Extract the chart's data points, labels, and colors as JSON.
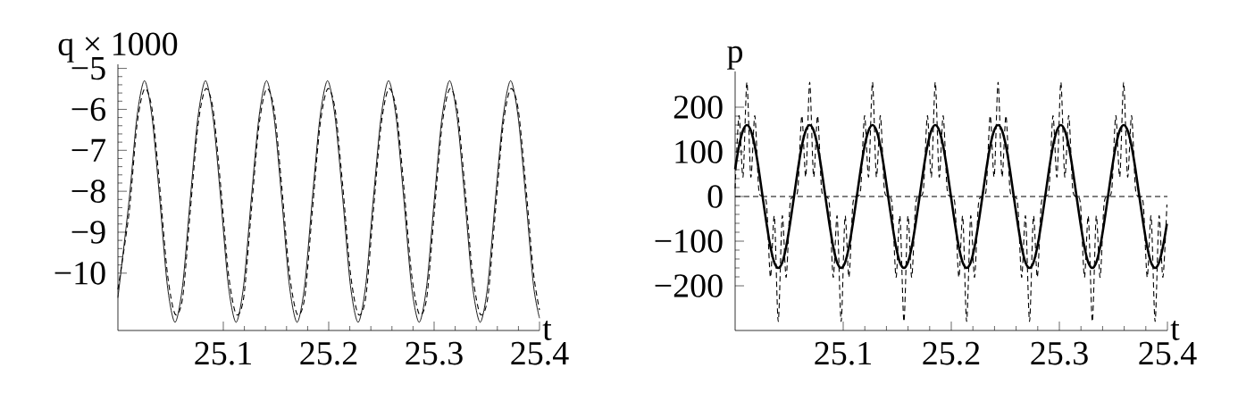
{
  "chart_data": [
    {
      "type": "line",
      "ylabel": "q × 1000",
      "xlabel": "t",
      "xlim": [
        25.0,
        25.4
      ],
      "ylim": [
        -11.4,
        -4.9
      ],
      "xticks": [
        25.1,
        25.2,
        25.3,
        25.4
      ],
      "yticks": [
        {
          "value": -5,
          "label": "−5"
        },
        {
          "value": -6,
          "label": "−6"
        },
        {
          "value": -7,
          "label": "−7"
        },
        {
          "value": -8,
          "label": "−8"
        },
        {
          "value": -9,
          "label": "−9"
        },
        {
          "value": -10,
          "label": "−10"
        }
      ],
      "x": [
        25.0,
        25.0107,
        25.018,
        25.0252,
        25.0324,
        25.0397,
        25.0469,
        25.0542,
        25.0614,
        25.0686,
        25.0759,
        25.0831,
        25.0903,
        25.0976,
        25.1048,
        25.1121,
        25.1193,
        25.1265,
        25.1338,
        25.141,
        25.1482,
        25.1555,
        25.1627,
        25.17,
        25.1772,
        25.1844,
        25.1917,
        25.1989,
        25.2061,
        25.2134,
        25.2206,
        25.2279,
        25.2351,
        25.2423,
        25.2496,
        25.2568,
        25.264,
        25.2713,
        25.2785,
        25.2858,
        25.293,
        25.3002,
        25.3075,
        25.3147,
        25.3219,
        25.3292,
        25.3364,
        25.3437,
        25.3509,
        25.3581,
        25.3654,
        25.3726,
        25.3798,
        25.3871,
        25.3943,
        25.4
      ],
      "series": [
        {
          "color": "#000000",
          "line_style": "solid",
          "values": [
            -10.6,
            -8.2,
            -6.2,
            -5.3,
            -6.2,
            -8.2,
            -10.3,
            -11.2,
            -10.3,
            -8.2,
            -6.2,
            -5.3,
            -6.2,
            -8.2,
            -10.3,
            -11.2,
            -10.3,
            -8.2,
            -6.2,
            -5.3,
            -6.2,
            -8.2,
            -10.3,
            -11.2,
            -10.3,
            -8.2,
            -6.2,
            -5.3,
            -6.2,
            -8.2,
            -10.3,
            -11.2,
            -10.3,
            -8.2,
            -6.2,
            -5.3,
            -6.2,
            -8.2,
            -10.3,
            -11.2,
            -10.3,
            -8.2,
            -6.2,
            -5.3,
            -6.2,
            -8.2,
            -10.3,
            -11.2,
            -10.3,
            -8.2,
            -6.2,
            -5.3,
            -6.2,
            -8.2,
            -10.3,
            -11.1
          ]
        },
        {
          "color": "#000000",
          "line_style": "dashed",
          "values": [
            -10.4,
            -8.5,
            -6.4,
            -5.5,
            -6.0,
            -7.9,
            -10.0,
            -11.0,
            -10.6,
            -8.5,
            -6.4,
            -5.5,
            -6.0,
            -7.9,
            -10.0,
            -11.0,
            -10.6,
            -8.5,
            -6.4,
            -5.5,
            -6.0,
            -7.9,
            -10.0,
            -11.0,
            -10.6,
            -8.5,
            -6.4,
            -5.5,
            -6.0,
            -7.9,
            -10.0,
            -11.0,
            -10.6,
            -8.5,
            -6.4,
            -5.5,
            -6.0,
            -7.9,
            -10.0,
            -11.0,
            -10.6,
            -8.5,
            -6.4,
            -5.5,
            -6.0,
            -7.9,
            -10.0,
            -11.0,
            -10.6,
            -8.5,
            -6.4,
            -5.5,
            -6.0,
            -7.9,
            -10.0,
            -10.9
          ]
        }
      ]
    },
    {
      "type": "line",
      "ylabel": "p",
      "xlabel": "t",
      "xlim": [
        25.0,
        25.4
      ],
      "ylim": [
        -300,
        280
      ],
      "xticks": [
        25.1,
        25.2,
        25.3,
        25.4
      ],
      "yticks": [
        {
          "value": -200,
          "label": "−200"
        },
        {
          "value": -100,
          "label": "−100"
        },
        0,
        100,
        200
      ],
      "ref_lines": [
        {
          "axis": "y",
          "value": 0,
          "color": "#000000",
          "line_style": "dashed"
        }
      ],
      "x": [
        25.0,
        25.0036,
        25.0073,
        25.0109,
        25.0145,
        25.0182,
        25.0218,
        25.0254,
        25.0291,
        25.0327,
        25.0363,
        25.0399,
        25.0436,
        25.0472,
        25.0508,
        25.0545,
        25.0581,
        25.0617,
        25.0654,
        25.069,
        25.0726,
        25.0763,
        25.0799,
        25.0835,
        25.0872,
        25.0908,
        25.0944,
        25.0981,
        25.1017,
        25.1053,
        25.1089,
        25.1126,
        25.1162,
        25.1198,
        25.1235,
        25.1271,
        25.1307,
        25.1344,
        25.138,
        25.1416,
        25.1453,
        25.1489,
        25.1525,
        25.1562,
        25.1598,
        25.1634,
        25.167,
        25.1707,
        25.1743,
        25.1779,
        25.1816,
        25.1852,
        25.1888,
        25.1925,
        25.1961,
        25.1997,
        25.2034,
        25.207,
        25.2106,
        25.2142,
        25.2179,
        25.2215,
        25.2251,
        25.2288,
        25.2324,
        25.236,
        25.2397,
        25.2433,
        25.2469,
        25.2506,
        25.2542,
        25.2578,
        25.2615,
        25.2651,
        25.2687,
        25.2724,
        25.276,
        25.2796,
        25.2832,
        25.2869,
        25.2905,
        25.2941,
        25.2978,
        25.3014,
        25.305,
        25.3087,
        25.3123,
        25.3159,
        25.3196,
        25.3232,
        25.3268,
        25.3305,
        25.3341,
        25.3377,
        25.3413,
        25.345,
        25.3486,
        25.3522,
        25.3559,
        25.3595,
        25.3631,
        25.3668,
        25.3704,
        25.374,
        25.3777,
        25.3813,
        25.3849,
        25.3886,
        25.3922,
        25.3958,
        25.3995
      ],
      "series": [
        {
          "color": "#000000",
          "line_style": "dashed",
          "values": [
            18,
            181,
            44,
            256,
            44,
            181,
            18,
            0,
            -18,
            -181,
            -44,
            -280,
            -44,
            -181,
            -18,
            0,
            18,
            181,
            44,
            256,
            44,
            181,
            18,
            0,
            -18,
            -181,
            -44,
            -280,
            -44,
            -181,
            -18,
            0,
            18,
            181,
            44,
            256,
            44,
            181,
            18,
            0,
            -18,
            -181,
            -44,
            -280,
            -44,
            -181,
            -18,
            0,
            18,
            181,
            44,
            256,
            44,
            181,
            18,
            0,
            -18,
            -181,
            -44,
            -280,
            -44,
            -181,
            -18,
            0,
            18,
            181,
            44,
            256,
            44,
            181,
            18,
            0,
            -18,
            -181,
            -44,
            -280,
            -44,
            -181,
            -18,
            0,
            18,
            181,
            44,
            256,
            44,
            181,
            18,
            0,
            -18,
            -181,
            -44,
            -280,
            -44,
            -181,
            -18,
            0,
            18,
            181,
            44,
            256,
            44,
            181,
            18,
            0,
            -18,
            -181,
            -44,
            -280,
            -44,
            -181,
            -18
          ]
        },
        {
          "color": "#000000",
          "line_style": "solid",
          "values": [
            61,
            113,
            148,
            160,
            148,
            113,
            61,
            0,
            -61,
            -113,
            -148,
            -160,
            -148,
            -113,
            -61,
            0,
            61,
            113,
            148,
            160,
            148,
            113,
            61,
            0,
            -61,
            -113,
            -148,
            -160,
            -148,
            -113,
            -61,
            0,
            61,
            113,
            148,
            160,
            148,
            113,
            61,
            0,
            -61,
            -113,
            -148,
            -160,
            -148,
            -113,
            -61,
            0,
            61,
            113,
            148,
            160,
            148,
            113,
            61,
            0,
            -61,
            -113,
            -148,
            -160,
            -148,
            -113,
            -61,
            0,
            61,
            113,
            148,
            160,
            148,
            113,
            61,
            0,
            -61,
            -113,
            -148,
            -160,
            -148,
            -113,
            -61,
            0,
            61,
            113,
            148,
            160,
            148,
            113,
            61,
            0,
            -61,
            -113,
            -148,
            -160,
            -148,
            -113,
            -61,
            0,
            61,
            113,
            148,
            160,
            148,
            113,
            61,
            0,
            -61,
            -113,
            -148,
            -160,
            -148,
            -113,
            -61
          ]
        }
      ]
    }
  ]
}
